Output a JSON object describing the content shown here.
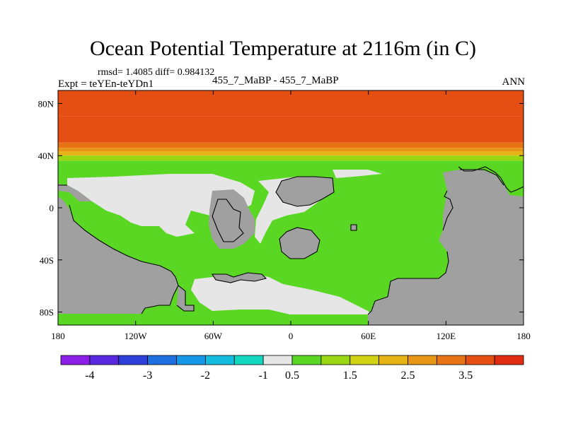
{
  "title": "Ocean Potential Temperature at 2116m (in C)",
  "stats": "rmsd= 1.4085 diff= 0.984132",
  "expt": "Expt = teYEn-teYDn1",
  "case_line": "455_7_MaBP - 455_7_MaBP",
  "season": "ANN",
  "map": {
    "lon_range": [
      -180,
      180
    ],
    "lat_range": [
      -90,
      90
    ],
    "x_ticks": [
      {
        "lon": -180,
        "label": "180"
      },
      {
        "lon": -120,
        "label": "120W"
      },
      {
        "lon": -60,
        "label": "60W"
      },
      {
        "lon": 0,
        "label": "0"
      },
      {
        "lon": 60,
        "label": "60E"
      },
      {
        "lon": 120,
        "label": "120E"
      },
      {
        "lon": 180,
        "label": "180"
      }
    ],
    "y_ticks": [
      {
        "lat": 80,
        "label": "80N"
      },
      {
        "lat": 40,
        "label": "40N"
      },
      {
        "lat": 0,
        "label": "0"
      },
      {
        "lat": -40,
        "label": "40S"
      },
      {
        "lat": -80,
        "label": "80S"
      }
    ],
    "land_color": "#a0a0a0",
    "coast_color": "#000000",
    "ocean_zones": [
      {
        "lat_min": 70,
        "lat_max": 90,
        "value": 3.75
      },
      {
        "lat_min": 50,
        "lat_max": 70,
        "value": 3.75
      },
      {
        "lat_min": 46,
        "lat_max": 50,
        "value": 3.25
      },
      {
        "lat_min": 43,
        "lat_max": 46,
        "value": 2.75
      },
      {
        "lat_min": 40,
        "lat_max": 43,
        "value": 2.25
      },
      {
        "lat_min": 36,
        "lat_max": 40,
        "value": 1.25
      },
      {
        "lat_min": -90,
        "lat_max": 36,
        "value": 0.75
      }
    ]
  },
  "colorbar": {
    "colors": [
      "#8c1fe6",
      "#5a28e0",
      "#2d3fd8",
      "#1e6fe0",
      "#1497e6",
      "#14bde0",
      "#14d7c0",
      "#e6e6e6",
      "#5ad723",
      "#9ad712",
      "#d2d214",
      "#e6b414",
      "#e69614",
      "#e67314",
      "#e64f14",
      "#e12d14"
    ],
    "labels": [
      {
        "after_index": 0,
        "text": "-4"
      },
      {
        "after_index": 2,
        "text": "-3"
      },
      {
        "after_index": 4,
        "text": "-2"
      },
      {
        "after_index": 6,
        "text": "-1"
      },
      {
        "after_index": 7,
        "text": "0.5"
      },
      {
        "after_index": 9,
        "text": "1.5"
      },
      {
        "after_index": 11,
        "text": "2.5"
      },
      {
        "after_index": 13,
        "text": "3.5"
      }
    ]
  }
}
